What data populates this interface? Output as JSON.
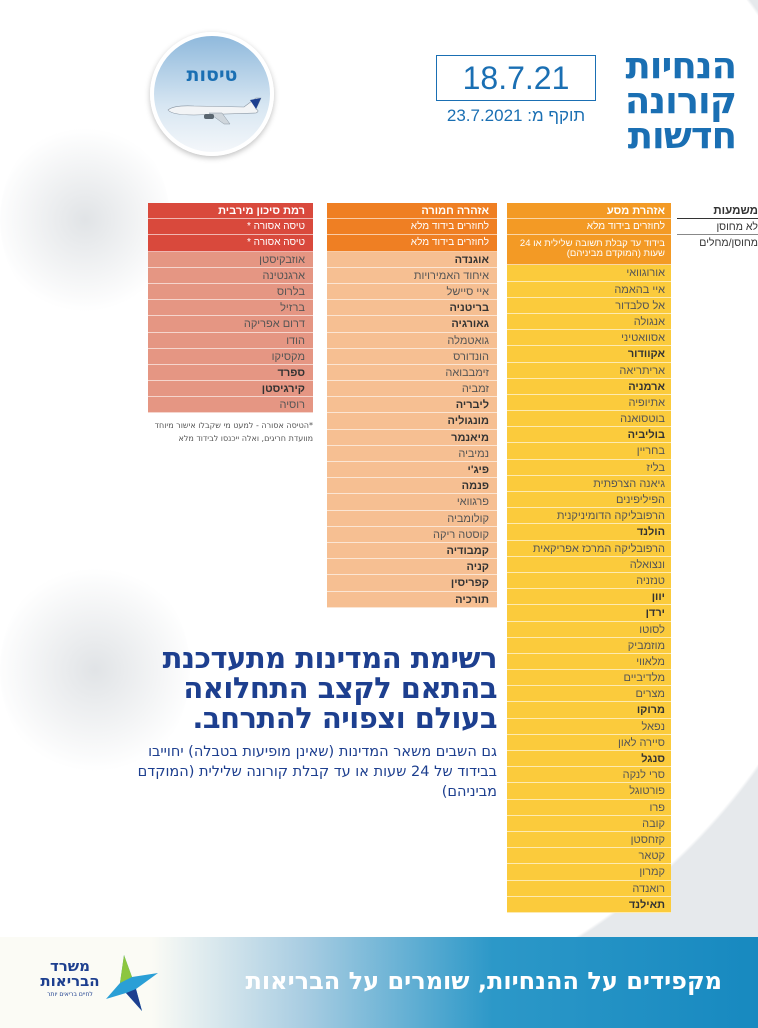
{
  "header": {
    "title_lines": [
      "הנחיות",
      "קורונה",
      "חדשות"
    ],
    "date": "18.7.21",
    "valid_from": "תוקף מ: 23.7.2021"
  },
  "flights_label": "טיסות",
  "legend": {
    "title": "משמעות",
    "not_vaccinated": "לא מחוסן",
    "vaccinated": "מחוסן/מחלים"
  },
  "columns": {
    "red": {
      "title": "רמת סיכון מירבית",
      "not_vaccinated": "טיסה אסורה *",
      "vaccinated": "טיסה אסורה *",
      "color": "#d9493c",
      "items": [
        {
          "name": "אוזבקיסטן",
          "bold": false
        },
        {
          "name": "ארגנטינה",
          "bold": false
        },
        {
          "name": "בלרוס",
          "bold": false
        },
        {
          "name": "ברזיל",
          "bold": false
        },
        {
          "name": "דרום אפריקה",
          "bold": false
        },
        {
          "name": "הודו",
          "bold": false
        },
        {
          "name": "מקסיקו",
          "bold": false
        },
        {
          "name": "ספרד",
          "bold": true
        },
        {
          "name": "קירגיסטן",
          "bold": true
        },
        {
          "name": "רוסיה",
          "bold": false
        }
      ],
      "note": "*הטיסה אסורה - למעט מי שקבלו אישור מיוחד מוועדת חריגים, ואלה ייכנסו לבידוד מלא"
    },
    "orange": {
      "title": "אזהרה חמורה",
      "not_vaccinated": "לחוזרים בידוד מלא",
      "vaccinated": "לחוזרים בידוד מלא",
      "color": "#ef7f23",
      "items": [
        {
          "name": "אוגנדה",
          "bold": true
        },
        {
          "name": "איחוד האמירויות",
          "bold": false
        },
        {
          "name": "איי סיישל",
          "bold": false
        },
        {
          "name": "בריטניה",
          "bold": true
        },
        {
          "name": "גאורגיה",
          "bold": true
        },
        {
          "name": "גואטמלה",
          "bold": false
        },
        {
          "name": "הונדורס",
          "bold": false
        },
        {
          "name": "זימבבואה",
          "bold": false
        },
        {
          "name": "זמביה",
          "bold": false
        },
        {
          "name": "ליבריה",
          "bold": true
        },
        {
          "name": "מונגוליה",
          "bold": true
        },
        {
          "name": "מיאנמר",
          "bold": true
        },
        {
          "name": "נמיביה",
          "bold": false
        },
        {
          "name": "פיג'י",
          "bold": true
        },
        {
          "name": "פנמה",
          "bold": true
        },
        {
          "name": "פרגוואי",
          "bold": false
        },
        {
          "name": "קולומביה",
          "bold": false
        },
        {
          "name": "קוסטה ריקה",
          "bold": false
        },
        {
          "name": "קמבודיה",
          "bold": true
        },
        {
          "name": "קניה",
          "bold": true
        },
        {
          "name": "קפריסין",
          "bold": true
        },
        {
          "name": "תורכיה",
          "bold": true
        }
      ]
    },
    "yellow": {
      "title": "אזהרת מסע",
      "not_vaccinated": "לחוזרים בידוד מלא",
      "vaccinated": "בידוד עד קבלת תשובה שלילית או 24 שעות (המוקדם מביניהם)",
      "color": "#fbcb3c",
      "items": [
        {
          "name": "אורוגוואי",
          "bold": false
        },
        {
          "name": "איי בהאמה",
          "bold": false
        },
        {
          "name": "אל סלבדור",
          "bold": false
        },
        {
          "name": "אנגולה",
          "bold": false
        },
        {
          "name": "אסוואטיני",
          "bold": false
        },
        {
          "name": "אקוודור",
          "bold": true
        },
        {
          "name": "אריתריאה",
          "bold": false
        },
        {
          "name": "ארמניה",
          "bold": true
        },
        {
          "name": "אתיופיה",
          "bold": false
        },
        {
          "name": "בוטסואנה",
          "bold": false
        },
        {
          "name": "בוליביה",
          "bold": true
        },
        {
          "name": "בחריין",
          "bold": false
        },
        {
          "name": "בליז",
          "bold": false
        },
        {
          "name": "גיאנה הצרפתית",
          "bold": false
        },
        {
          "name": "הפיליפינים",
          "bold": false
        },
        {
          "name": "הרפובליקה הדומיניקנית",
          "bold": false
        },
        {
          "name": "הולנד",
          "bold": true
        },
        {
          "name": "הרפובליקה המרכז אפריקאית",
          "bold": false
        },
        {
          "name": "ונצואלה",
          "bold": false
        },
        {
          "name": "טנזניה",
          "bold": false
        },
        {
          "name": "יוון",
          "bold": true
        },
        {
          "name": "ירדן",
          "bold": true
        },
        {
          "name": "לסוטו",
          "bold": false
        },
        {
          "name": "מוזמביק",
          "bold": false
        },
        {
          "name": "מלאווי",
          "bold": false
        },
        {
          "name": "מלדיביים",
          "bold": false
        },
        {
          "name": "מצרים",
          "bold": false
        },
        {
          "name": "מרוקו",
          "bold": true
        },
        {
          "name": "נפאל",
          "bold": false
        },
        {
          "name": "סיירה לאון",
          "bold": false
        },
        {
          "name": "סנגל",
          "bold": true
        },
        {
          "name": "סרי לנקה",
          "bold": false
        },
        {
          "name": "פורטוגל",
          "bold": false
        },
        {
          "name": "פרו",
          "bold": false
        },
        {
          "name": "קובה",
          "bold": false
        },
        {
          "name": "קזחסטן",
          "bold": false
        },
        {
          "name": "קטאר",
          "bold": false
        },
        {
          "name": "קמרון",
          "bold": false
        },
        {
          "name": "רואנדה",
          "bold": false
        },
        {
          "name": "תאילנד",
          "bold": true
        }
      ]
    }
  },
  "headline": "רשימת המדינות מתעדכנת בהתאם לקצב התחלואה בעולם וצפויה להתרחב.",
  "body": "גם השבים משאר המדינות (שאינן מופיעות בטבלה) יחוייבו בבידוד של 24 שעות או עד קבלת קורונה שלילית (המוקדם מביניהם)",
  "footer": {
    "slogan": "מקפידים על ההנחיות, שומרים על הבריאות",
    "logo_text": "משרד הבריאות",
    "logo_tagline": "לחיים בריאים יותר"
  }
}
